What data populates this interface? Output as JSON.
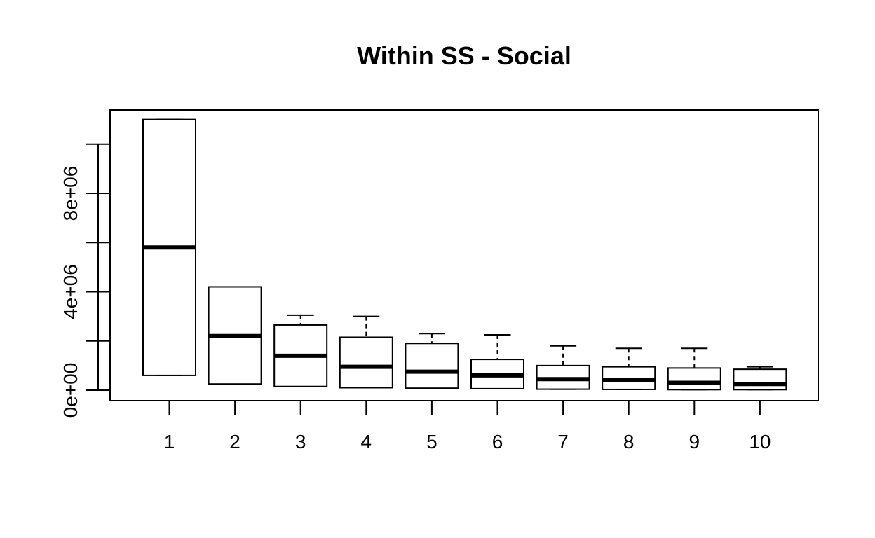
{
  "chart_data": {
    "type": "boxplot",
    "title": "Within SS - Social",
    "xlabel": "",
    "ylabel": "",
    "categories": [
      "1",
      "2",
      "3",
      "4",
      "5",
      "6",
      "7",
      "8",
      "9",
      "10"
    ],
    "ylim": [
      -200000,
      11600000
    ],
    "yticks": [
      0,
      2000000,
      4000000,
      6000000,
      8000000,
      10000000
    ],
    "ytick_labels": [
      "0e+00",
      "",
      "4e+06",
      "",
      "8e+06",
      ""
    ],
    "boxes": [
      {
        "label": "1",
        "min": 600000,
        "q1": 600000,
        "median": 5800000,
        "q3": 11000000,
        "max": 11000000
      },
      {
        "label": "2",
        "min": 250000,
        "q1": 250000,
        "median": 2200000,
        "q3": 4200000,
        "max": 4200000
      },
      {
        "label": "3",
        "min": 150000,
        "q1": 150000,
        "median": 1400000,
        "q3": 2650000,
        "max": 3050000
      },
      {
        "label": "4",
        "min": 100000,
        "q1": 100000,
        "median": 950000,
        "q3": 2150000,
        "max": 3000000
      },
      {
        "label": "5",
        "min": 80000,
        "q1": 80000,
        "median": 750000,
        "q3": 1900000,
        "max": 2300000
      },
      {
        "label": "6",
        "min": 60000,
        "q1": 60000,
        "median": 600000,
        "q3": 1250000,
        "max": 2250000
      },
      {
        "label": "7",
        "min": 40000,
        "q1": 40000,
        "median": 450000,
        "q3": 1000000,
        "max": 1800000
      },
      {
        "label": "8",
        "min": 30000,
        "q1": 30000,
        "median": 400000,
        "q3": 950000,
        "max": 1700000
      },
      {
        "label": "9",
        "min": 20000,
        "q1": 20000,
        "median": 300000,
        "q3": 900000,
        "max": 1700000
      },
      {
        "label": "10",
        "min": 20000,
        "q1": 20000,
        "median": 250000,
        "q3": 850000,
        "max": 950000
      }
    ],
    "grid": false,
    "legend": "none"
  }
}
